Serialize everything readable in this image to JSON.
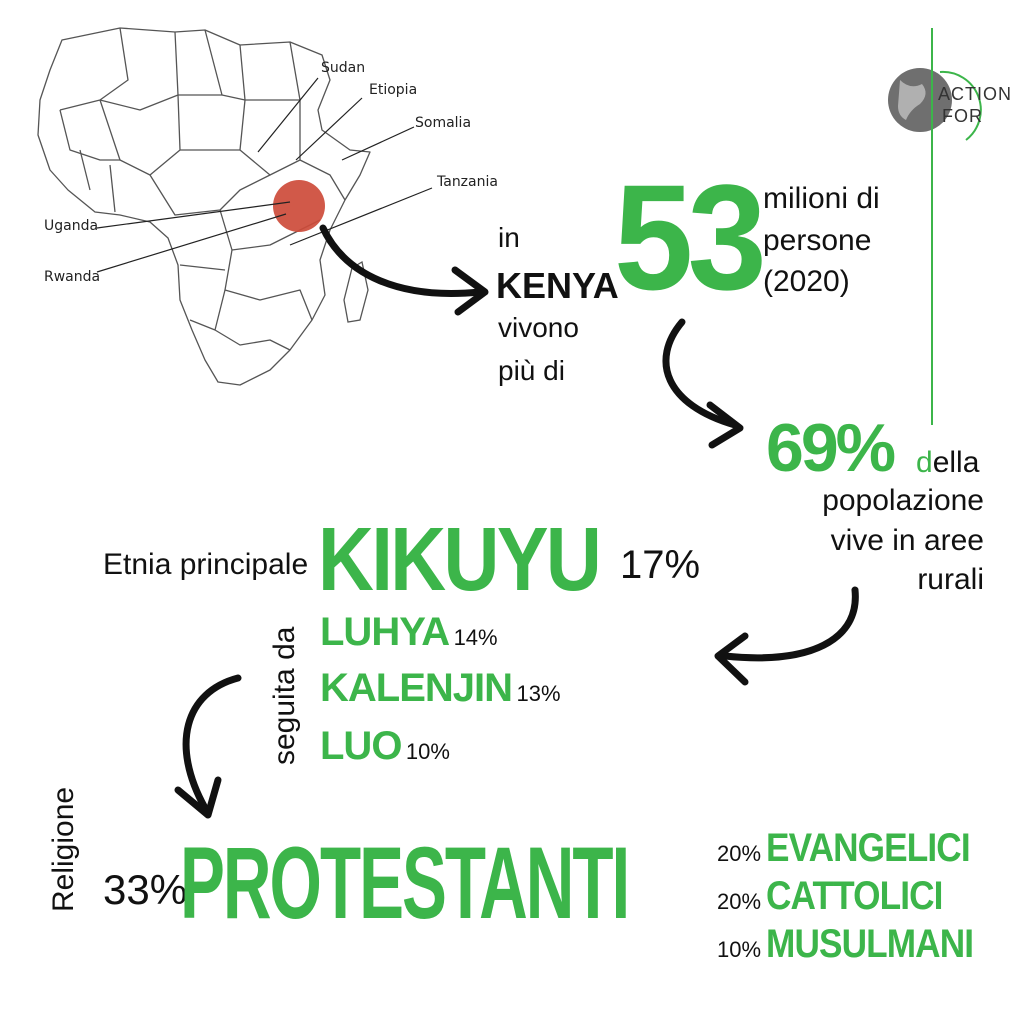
{
  "map": {
    "labels": {
      "sudan": "Sudan",
      "etiopia": "Etiopia",
      "somalia": "Somalia",
      "tanzania": "Tanzania",
      "uganda": "Uganda",
      "rwanda": "Rwanda"
    }
  },
  "logo": {
    "line1": "ACTION",
    "line2": "FOR"
  },
  "population": {
    "in": "in",
    "country": "KENYA",
    "vivono": "vivono",
    "piu_di": "più di",
    "number": "53",
    "unit_line1": "milioni di",
    "unit_line2": "persone",
    "unit_line3": "(2020)"
  },
  "rural": {
    "percent": "69%",
    "line1_first": "d",
    "line1_rest": "ella",
    "line2": "popolazione",
    "line3": "vive in aree",
    "line4": "rurali"
  },
  "ethnicity": {
    "label": "Etnia principale",
    "main": "KIKUYU",
    "main_percent": "17%",
    "followed_by": "seguita da",
    "others": [
      {
        "name": "LUHYA",
        "percent": "14%"
      },
      {
        "name": "KALENJIN",
        "percent": "13%"
      },
      {
        "name": "LUO",
        "percent": "10%"
      }
    ]
  },
  "religion": {
    "label": "Religione",
    "main_percent": "33%",
    "main": "PROTESTANTI",
    "others": [
      {
        "percent": "20%",
        "name": "EVANGELICI"
      },
      {
        "percent": "20%",
        "name": "CATTOLICI"
      },
      {
        "percent": "10%",
        "name": "MUSULMANI"
      }
    ]
  },
  "colors": {
    "accent": "#3cb54a",
    "kenya_marker": "#cd4b3a",
    "text": "#111111"
  }
}
